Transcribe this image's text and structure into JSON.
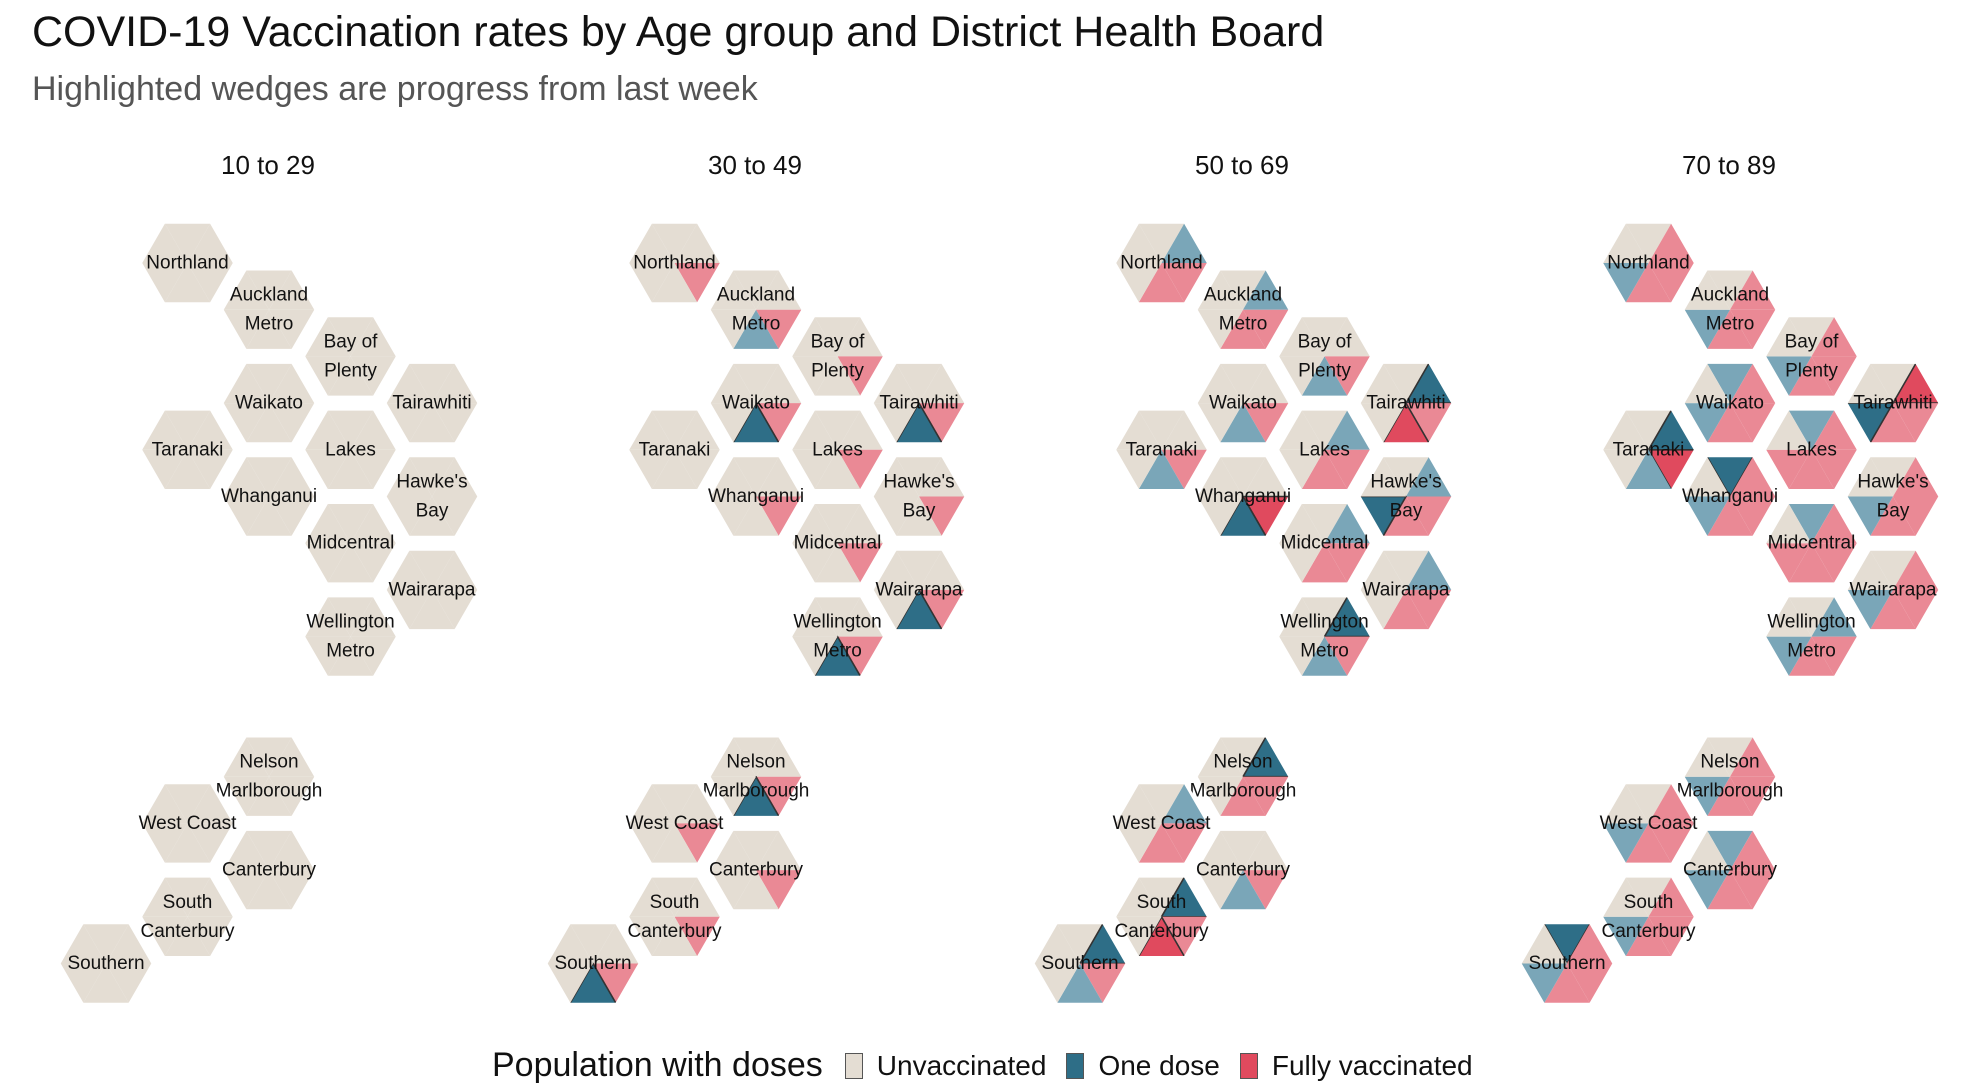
{
  "title": "COVID-19 Vaccination rates by Age group and District Health Board",
  "subtitle": "Highlighted wedges are progress from last week",
  "colors": {
    "unvaccinated": "#e4ddd3",
    "one_dose": "#7aa6b8",
    "fully": "#ea8995",
    "one_dose_new": "#2e6e87",
    "fully_new": "#e04a5e",
    "outline": "#ffffff"
  },
  "legend": {
    "title": "Population with doses",
    "items": [
      {
        "label": "Unvaccinated",
        "color": "#e4ddd3"
      },
      {
        "label": "One dose",
        "color": "#2e6e87"
      },
      {
        "label": "Fully vaccinated",
        "color": "#e04a5e"
      }
    ]
  },
  "chart_data": {
    "type": "hexmap",
    "wedge_unit": "sixths of population",
    "age_groups": [
      "10 to 29",
      "30 to 49",
      "50 to 69",
      "70 to 89"
    ],
    "districts": [
      {
        "name": "Northland",
        "lines": [
          "Northland"
        ],
        "col": 1,
        "row": 0
      },
      {
        "name": "Auckland Metro",
        "lines": [
          "Auckland",
          "Metro"
        ],
        "col": 2,
        "row": 1
      },
      {
        "name": "Bay of Plenty",
        "lines": [
          "Bay of",
          "Plenty"
        ],
        "col": 3,
        "row": 2
      },
      {
        "name": "Waikato",
        "lines": [
          "Waikato"
        ],
        "col": 2,
        "row": 3
      },
      {
        "name": "Tairawhiti",
        "lines": [
          "Tairawhiti"
        ],
        "col": 4,
        "row": 3
      },
      {
        "name": "Taranaki",
        "lines": [
          "Taranaki"
        ],
        "col": 1,
        "row": 4
      },
      {
        "name": "Lakes",
        "lines": [
          "Lakes"
        ],
        "col": 3,
        "row": 4
      },
      {
        "name": "Whanganui",
        "lines": [
          "Whanganui"
        ],
        "col": 2,
        "row": 5
      },
      {
        "name": "Hawke's Bay",
        "lines": [
          "Hawke's",
          "Bay"
        ],
        "col": 4,
        "row": 5
      },
      {
        "name": "Midcentral",
        "lines": [
          "Midcentral"
        ],
        "col": 3,
        "row": 6
      },
      {
        "name": "Wairarapa",
        "lines": [
          "Wairarapa"
        ],
        "col": 4,
        "row": 7
      },
      {
        "name": "Wellington Metro",
        "lines": [
          "Wellington",
          "Metro"
        ],
        "col": 3,
        "row": 8
      },
      {
        "name": "Nelson Marlborough",
        "lines": [
          "Nelson",
          "Marlborough"
        ],
        "col": 2,
        "row": 11
      },
      {
        "name": "West Coast",
        "lines": [
          "West Coast"
        ],
        "col": 1,
        "row": 12
      },
      {
        "name": "Canterbury",
        "lines": [
          "Canterbury"
        ],
        "col": 2,
        "row": 13
      },
      {
        "name": "South Canterbury",
        "lines": [
          "South",
          "Canterbury"
        ],
        "col": 1,
        "row": 14
      },
      {
        "name": "Southern",
        "lines": [
          "Southern"
        ],
        "col": 0,
        "row": 15
      }
    ],
    "series": [
      {
        "name": "One dose",
        "unit": "sixths"
      },
      {
        "name": "Fully vaccinated",
        "unit": "sixths"
      }
    ],
    "values": {
      "10 to 29": {
        "Northland": {
          "one": 0,
          "full": 0,
          "one_new": 0,
          "full_new": 0
        },
        "Auckland Metro": {
          "one": 0,
          "full": 0,
          "one_new": 0,
          "full_new": 0
        },
        "Bay of Plenty": {
          "one": 0,
          "full": 0,
          "one_new": 0,
          "full_new": 0
        },
        "Waikato": {
          "one": 0,
          "full": 0,
          "one_new": 0,
          "full_new": 0
        },
        "Tairawhiti": {
          "one": 0,
          "full": 0,
          "one_new": 0,
          "full_new": 0
        },
        "Taranaki": {
          "one": 0,
          "full": 0,
          "one_new": 0,
          "full_new": 0
        },
        "Lakes": {
          "one": 0,
          "full": 0,
          "one_new": 0,
          "full_new": 0
        },
        "Whanganui": {
          "one": 0,
          "full": 0,
          "one_new": 0,
          "full_new": 0
        },
        "Hawke's Bay": {
          "one": 0,
          "full": 0,
          "one_new": 0,
          "full_new": 0
        },
        "Midcentral": {
          "one": 0,
          "full": 0,
          "one_new": 0,
          "full_new": 0
        },
        "Wairarapa": {
          "one": 0,
          "full": 0,
          "one_new": 0,
          "full_new": 0
        },
        "Wellington Metro": {
          "one": 0,
          "full": 0,
          "one_new": 0,
          "full_new": 0
        },
        "Nelson Marlborough": {
          "one": 0,
          "full": 0,
          "one_new": 0,
          "full_new": 0
        },
        "West Coast": {
          "one": 0,
          "full": 0,
          "one_new": 0,
          "full_new": 0
        },
        "Canterbury": {
          "one": 0,
          "full": 0,
          "one_new": 0,
          "full_new": 0
        },
        "South Canterbury": {
          "one": 0,
          "full": 0,
          "one_new": 0,
          "full_new": 0
        },
        "Southern": {
          "one": 0,
          "full": 0,
          "one_new": 0,
          "full_new": 0
        }
      },
      "30 to 49": {
        "Northland": {
          "one": 0,
          "full": 1,
          "one_new": 0,
          "full_new": 0
        },
        "Auckland Metro": {
          "one": 1,
          "full": 1,
          "one_new": 0,
          "full_new": 0
        },
        "Bay of Plenty": {
          "one": 0,
          "full": 1,
          "one_new": 0,
          "full_new": 0
        },
        "Waikato": {
          "one": 1,
          "full": 1,
          "one_new": 1,
          "full_new": 0
        },
        "Tairawhiti": {
          "one": 1,
          "full": 1,
          "one_new": 1,
          "full_new": 0
        },
        "Taranaki": {
          "one": 0,
          "full": 0,
          "one_new": 0,
          "full_new": 0
        },
        "Lakes": {
          "one": 0,
          "full": 1,
          "one_new": 0,
          "full_new": 0
        },
        "Whanganui": {
          "one": 0,
          "full": 1,
          "one_new": 0,
          "full_new": 0
        },
        "Hawke's Bay": {
          "one": 0,
          "full": 1,
          "one_new": 0,
          "full_new": 0
        },
        "Midcentral": {
          "one": 0,
          "full": 1,
          "one_new": 0,
          "full_new": 0
        },
        "Wairarapa": {
          "one": 1,
          "full": 1,
          "one_new": 1,
          "full_new": 0
        },
        "Wellington Metro": {
          "one": 1,
          "full": 1,
          "one_new": 1,
          "full_new": 0
        },
        "Nelson Marlborough": {
          "one": 1,
          "full": 1,
          "one_new": 1,
          "full_new": 0
        },
        "West Coast": {
          "one": 0,
          "full": 1,
          "one_new": 0,
          "full_new": 0
        },
        "Canterbury": {
          "one": 0,
          "full": 1,
          "one_new": 0,
          "full_new": 0
        },
        "South Canterbury": {
          "one": 0,
          "full": 1,
          "one_new": 0,
          "full_new": 0
        },
        "Southern": {
          "one": 1,
          "full": 1,
          "one_new": 1,
          "full_new": 0
        }
      },
      "50 to 69": {
        "Northland": {
          "one": 1,
          "full": 2,
          "one_new": 0,
          "full_new": 0
        },
        "Auckland Metro": {
          "one": 1,
          "full": 2,
          "one_new": 0,
          "full_new": 0
        },
        "Bay of Plenty": {
          "one": 1,
          "full": 1,
          "one_new": 0,
          "full_new": 0
        },
        "Waikato": {
          "one": 1,
          "full": 1,
          "one_new": 0,
          "full_new": 0
        },
        "Tairawhiti": {
          "one": 1,
          "full": 2,
          "one_new": 1,
          "full_new": 1
        },
        "Taranaki": {
          "one": 1,
          "full": 1,
          "one_new": 0,
          "full_new": 0
        },
        "Lakes": {
          "one": 1,
          "full": 2,
          "one_new": 0,
          "full_new": 0
        },
        "Whanganui": {
          "one": 1,
          "full": 1,
          "one_new": 1,
          "full_new": 1
        },
        "Hawke's Bay": {
          "one": 2,
          "full": 2,
          "one_new": 1,
          "full_new": 0
        },
        "Midcentral": {
          "one": 1,
          "full": 2,
          "one_new": 0,
          "full_new": 0
        },
        "Wairarapa": {
          "one": 1,
          "full": 2,
          "one_new": 0,
          "full_new": 0
        },
        "Wellington Metro": {
          "one": 2,
          "full": 1,
          "one_new": 1,
          "full_new": 0
        },
        "Nelson Marlborough": {
          "one": 1,
          "full": 2,
          "one_new": 1,
          "full_new": 0
        },
        "West Coast": {
          "one": 1,
          "full": 2,
          "one_new": 0,
          "full_new": 0
        },
        "Canterbury": {
          "one": 1,
          "full": 1,
          "one_new": 0,
          "full_new": 0
        },
        "South Canterbury": {
          "one": 1,
          "full": 2,
          "one_new": 1,
          "full_new": 1
        },
        "Southern": {
          "one": 2,
          "full": 1,
          "one_new": 1,
          "full_new": 0
        }
      },
      "70 to 89": {
        "Northland": {
          "one": 1,
          "full": 3,
          "one_new": 0,
          "full_new": 0
        },
        "Auckland Metro": {
          "one": 1,
          "full": 3,
          "one_new": 0,
          "full_new": 0
        },
        "Bay of Plenty": {
          "one": 1,
          "full": 3,
          "one_new": 0,
          "full_new": 0
        },
        "Waikato": {
          "one": 2,
          "full": 3,
          "one_new": 0,
          "full_new": 0
        },
        "Tairawhiti": {
          "one": 1,
          "full": 3,
          "one_new": 1,
          "full_new": 1
        },
        "Taranaki": {
          "one": 2,
          "full": 1,
          "one_new": 1,
          "full_new": 1
        },
        "Lakes": {
          "one": 1,
          "full": 4,
          "one_new": 0,
          "full_new": 0
        },
        "Whanganui": {
          "one": 2,
          "full": 3,
          "one_new": 1,
          "full_new": 0
        },
        "Hawke's Bay": {
          "one": 1,
          "full": 3,
          "one_new": 0,
          "full_new": 0
        },
        "Midcentral": {
          "one": 1,
          "full": 4,
          "one_new": 0,
          "full_new": 0
        },
        "Wairarapa": {
          "one": 1,
          "full": 3,
          "one_new": 0,
          "full_new": 0
        },
        "Wellington Metro": {
          "one": 2,
          "full": 2,
          "one_new": 0,
          "full_new": 0
        },
        "Nelson Marlborough": {
          "one": 1,
          "full": 3,
          "one_new": 0,
          "full_new": 0
        },
        "West Coast": {
          "one": 1,
          "full": 3,
          "one_new": 0,
          "full_new": 0
        },
        "Canterbury": {
          "one": 2,
          "full": 3,
          "one_new": 0,
          "full_new": 0
        },
        "South Canterbury": {
          "one": 1,
          "full": 3,
          "one_new": 0,
          "full_new": 0
        },
        "Southern": {
          "one": 2,
          "full": 3,
          "one_new": 1,
          "full_new": 0
        }
      }
    }
  }
}
